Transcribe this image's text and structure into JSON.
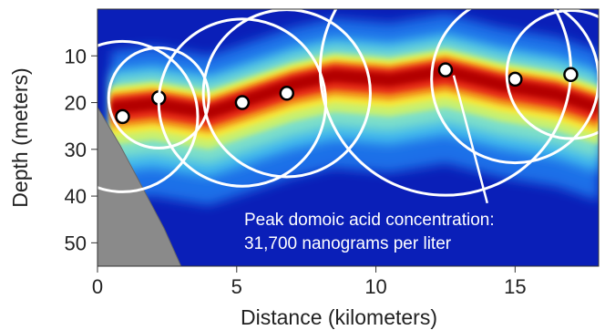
{
  "chart_data": {
    "type": "heatmap",
    "title": "",
    "xlabel": "Distance (kilometers)",
    "ylabel": "Depth (meters)",
    "xlim": [
      0,
      18
    ],
    "ylim": [
      55,
      0
    ],
    "x_ticks": [
      0,
      5,
      10,
      15
    ],
    "y_ticks": [
      10,
      20,
      30,
      40,
      50
    ],
    "grid": false,
    "colormap": [
      "#0a1fb8",
      "#1e6fe8",
      "#3fb8ee",
      "#7fe0c8",
      "#c8f070",
      "#f6e93a",
      "#f39a1c",
      "#e62a12",
      "#b30000"
    ],
    "band_center_depth": [
      {
        "x": 0.5,
        "y": 21
      },
      {
        "x": 2,
        "y": 20
      },
      {
        "x": 4,
        "y": 22
      },
      {
        "x": 5.5,
        "y": 19
      },
      {
        "x": 7,
        "y": 16
      },
      {
        "x": 8.5,
        "y": 14
      },
      {
        "x": 10.5,
        "y": 15
      },
      {
        "x": 12.5,
        "y": 13
      },
      {
        "x": 14.5,
        "y": 16
      },
      {
        "x": 16.5,
        "y": 18
      },
      {
        "x": 18,
        "y": 21
      }
    ],
    "seafloor": [
      {
        "x": 0,
        "y": 21
      },
      {
        "x": 0.8,
        "y": 29
      },
      {
        "x": 1.6,
        "y": 38
      },
      {
        "x": 2.4,
        "y": 47
      },
      {
        "x": 3.0,
        "y": 55
      }
    ],
    "samples": [
      {
        "x": 0.9,
        "y": 23,
        "circle_r": 2.7
      },
      {
        "x": 2.2,
        "y": 19,
        "circle_r": 1.8
      },
      {
        "x": 5.2,
        "y": 20,
        "circle_r": 3.0
      },
      {
        "x": 6.8,
        "y": 18,
        "circle_r": 3.0
      },
      {
        "x": 12.5,
        "y": 13,
        "circle_r": 4.5
      },
      {
        "x": 15.0,
        "y": 15,
        "circle_r": 3.0
      },
      {
        "x": 17.0,
        "y": 14,
        "circle_r": 2.3
      }
    ],
    "annotation": {
      "lines": [
        "Peak domoic acid concentration:",
        "31,700 nanograms per liter"
      ],
      "points_to": {
        "x": 12.5,
        "y": 13
      }
    }
  }
}
